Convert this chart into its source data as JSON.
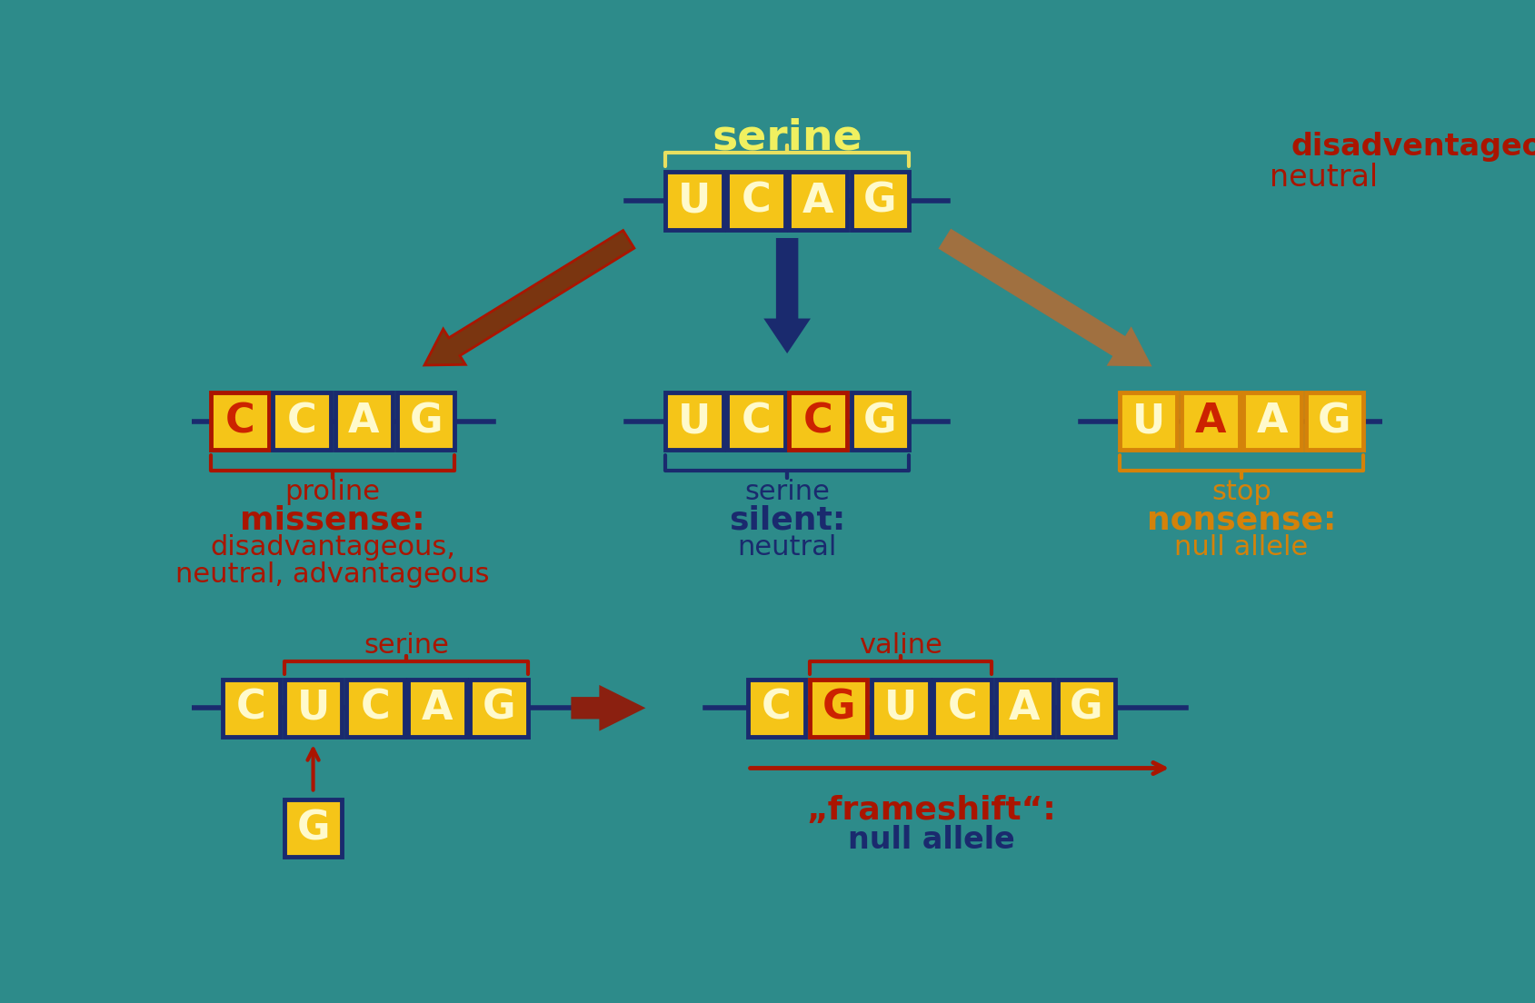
{
  "bg_color": "#2d8b8a",
  "box_fill": "#f5c518",
  "box_edge_dark": "#1a2a6e",
  "box_edge_orange": "#d4820a",
  "box_edge_red": "#aa1500",
  "letter_yellow": "#fffacc",
  "letter_red": "#cc2200",
  "line_color_dark": "#1a2a6e",
  "text_red": "#aa1500",
  "text_orange": "#d4820a",
  "text_yellow_bright": "#f0f060",
  "text_blue": "#1a2a6e",
  "brace_yellow": "#e8e060",
  "brace_red": "#aa1500",
  "brace_blue": "#1a2a6e",
  "brace_orange": "#d4820a",
  "arrow_brown_fill": "#7a3510",
  "arrow_brown_edge": "#aa1500",
  "arrow_tan_fill": "#a07040",
  "arrow_tan_edge": "#a07040",
  "top_seq": [
    "U",
    "C",
    "A",
    "G"
  ],
  "left_seq": [
    "C",
    "C",
    "A",
    "G"
  ],
  "mid_seq": [
    "U",
    "C",
    "C",
    "G"
  ],
  "right_seq": [
    "U",
    "A",
    "A",
    "G"
  ],
  "bottom_left_seq": [
    "C",
    "U",
    "C",
    "A",
    "G"
  ],
  "bottom_right_seq": [
    "C",
    "G",
    "U",
    "C",
    "A",
    "G"
  ],
  "top_serine": "serine",
  "top_right_line1": "disadventageous",
  "top_right_line2": "neutral",
  "left_amino": "proline",
  "left_mut1": "missense:",
  "left_mut2": "disadvantageous,",
  "left_mut3": "neutral, advantageous",
  "mid_amino": "serine",
  "mid_mut1": "silent:",
  "mid_mut2": "neutral",
  "right_amino": "stop",
  "right_mut1": "nonsense:",
  "right_mut2": "null allele",
  "bl_serine": "serine",
  "br_valine": "valine",
  "fs_label1": "„frameshift“:",
  "fs_label2": "null allele"
}
